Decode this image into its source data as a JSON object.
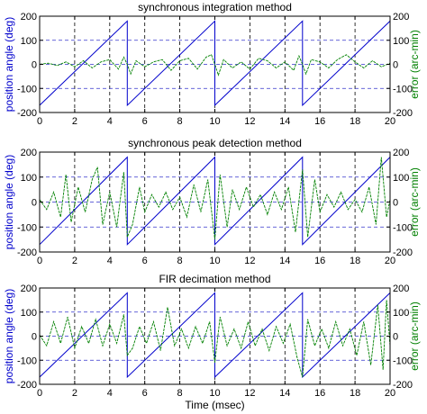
{
  "chart_data": [
    {
      "type": "line",
      "title": "synchronous integration method",
      "ylabel_left": "position angle (deg)",
      "ylabel_right": "error (arc-min)",
      "xlabel": "",
      "xlim": [
        0,
        20
      ],
      "ylim_left": [
        -200,
        200
      ],
      "ylim_right": [
        -200,
        200
      ],
      "xticks": [
        0,
        2,
        4,
        6,
        8,
        10,
        12,
        14,
        16,
        18,
        20
      ],
      "yticks_left": [
        -200,
        -100,
        0,
        100,
        200
      ],
      "yticks_right": [
        -200,
        -100,
        0,
        100,
        200
      ],
      "grid": "dashed",
      "series": [
        {
          "axis": "left",
          "color": "#0000cc",
          "x": [
            0,
            5,
            5,
            10,
            10,
            15,
            15,
            20
          ],
          "y": [
            -170,
            180,
            -170,
            180,
            -170,
            180,
            -170,
            180
          ]
        },
        {
          "axis": "right",
          "color": "#008000",
          "x": [
            0,
            0.5,
            1,
            1.5,
            2,
            2.5,
            3,
            3.5,
            4,
            4.5,
            4.8,
            5,
            5.2,
            5.5,
            6,
            6.5,
            7,
            7.5,
            8,
            8.5,
            9,
            9.5,
            9.8,
            10,
            10.2,
            10.5,
            11,
            11.5,
            12,
            12.5,
            13,
            13.5,
            14,
            14.5,
            14.8,
            15,
            15.2,
            15.5,
            16,
            16.5,
            17,
            17.5,
            18,
            18.5,
            19,
            19.5,
            20
          ],
          "y": [
            0,
            5,
            -5,
            10,
            -10,
            15,
            -15,
            10,
            20,
            -20,
            30,
            0,
            -40,
            15,
            -10,
            10,
            20,
            -25,
            15,
            25,
            -20,
            30,
            40,
            0,
            -45,
            20,
            -15,
            10,
            -20,
            25,
            15,
            -15,
            10,
            -25,
            35,
            0,
            -40,
            20,
            10,
            -15,
            20,
            40,
            10,
            -15,
            15,
            -10,
            5
          ]
        }
      ]
    },
    {
      "type": "line",
      "title": "synchronous peak detection method",
      "ylabel_left": "position angle (deg)",
      "ylabel_right": "error (arc-min)",
      "xlabel": "",
      "xlim": [
        0,
        20
      ],
      "ylim_left": [
        -200,
        200
      ],
      "ylim_right": [
        -200,
        200
      ],
      "xticks": [
        0,
        2,
        4,
        6,
        8,
        10,
        12,
        14,
        16,
        18,
        20
      ],
      "yticks_left": [
        -200,
        -100,
        0,
        100,
        200
      ],
      "yticks_right": [
        -200,
        -100,
        0,
        100,
        200
      ],
      "grid": "dashed",
      "series": [
        {
          "axis": "left",
          "color": "#0000cc",
          "x": [
            0,
            5,
            5,
            10,
            10,
            15,
            15,
            20
          ],
          "y": [
            -170,
            180,
            -170,
            180,
            -170,
            180,
            -170,
            180
          ]
        },
        {
          "axis": "right",
          "color": "#008000",
          "x": [
            0,
            0.4,
            0.8,
            1.2,
            1.5,
            1.8,
            2.2,
            2.6,
            3,
            3.3,
            3.6,
            4,
            4.4,
            4.8,
            5,
            5.3,
            5.7,
            6,
            6.4,
            6.8,
            7.2,
            7.6,
            8,
            8.4,
            8.8,
            9.2,
            9.6,
            10,
            10.3,
            10.7,
            11,
            11.4,
            11.8,
            12.2,
            12.6,
            13,
            13.4,
            13.8,
            14.2,
            14.6,
            15,
            15.3,
            15.7,
            16,
            16.4,
            16.8,
            17.2,
            17.6,
            18,
            18.4,
            18.8,
            19.2,
            19.5,
            19.8,
            20
          ],
          "y": [
            10,
            -30,
            40,
            -60,
            110,
            -80,
            60,
            -40,
            90,
            140,
            -90,
            40,
            -100,
            120,
            -140,
            -90,
            60,
            -40,
            30,
            -20,
            40,
            -30,
            20,
            -60,
            70,
            -40,
            90,
            -150,
            110,
            -100,
            50,
            -30,
            60,
            -20,
            30,
            -50,
            40,
            -30,
            60,
            -120,
            130,
            -140,
            90,
            -40,
            30,
            -20,
            40,
            -30,
            10,
            -40,
            60,
            -90,
            180,
            -60,
            10
          ]
        }
      ]
    },
    {
      "type": "line",
      "title": "FIR decimation method",
      "ylabel_left": "position angle (deg)",
      "ylabel_right": "error (arc-min)",
      "xlabel": "Time (msec)",
      "xlim": [
        0,
        20
      ],
      "ylim_left": [
        -200,
        200
      ],
      "ylim_right": [
        -200,
        200
      ],
      "xticks": [
        0,
        2,
        4,
        6,
        8,
        10,
        12,
        14,
        16,
        18,
        20
      ],
      "yticks_left": [
        -200,
        -100,
        0,
        100,
        200
      ],
      "yticks_right": [
        -200,
        -100,
        0,
        100,
        200
      ],
      "grid": "dashed",
      "series": [
        {
          "axis": "left",
          "color": "#0000cc",
          "x": [
            0,
            5,
            5,
            10,
            10,
            15,
            15,
            20
          ],
          "y": [
            -170,
            180,
            -170,
            180,
            -170,
            180,
            -170,
            180
          ]
        },
        {
          "axis": "right",
          "color": "#008000",
          "x": [
            0,
            0.4,
            0.8,
            1.2,
            1.6,
            2,
            2.4,
            2.8,
            3.2,
            3.6,
            4,
            4.4,
            4.8,
            5,
            5.3,
            5.7,
            6.1,
            6.5,
            6.9,
            7.3,
            7.7,
            8.1,
            8.5,
            8.9,
            9.3,
            9.7,
            10,
            10.3,
            10.7,
            11.1,
            11.5,
            11.9,
            12.3,
            12.7,
            13.1,
            13.5,
            13.9,
            14.3,
            14.7,
            15,
            15.3,
            15.7,
            16.1,
            16.5,
            16.9,
            17.3,
            17.7,
            18.1,
            18.5,
            18.9,
            19.3,
            19.6,
            19.8,
            20
          ],
          "y": [
            5,
            -40,
            60,
            -30,
            80,
            -50,
            40,
            -30,
            70,
            -40,
            50,
            -30,
            90,
            -80,
            -50,
            40,
            -30,
            60,
            -60,
            120,
            -40,
            30,
            -50,
            40,
            -30,
            60,
            -110,
            80,
            -40,
            30,
            -50,
            60,
            -40,
            30,
            -60,
            40,
            -30,
            50,
            -90,
            -170,
            70,
            -40,
            30,
            -50,
            60,
            -40,
            30,
            -80,
            60,
            -120,
            130,
            -140,
            150,
            -40
          ]
        }
      ]
    }
  ]
}
